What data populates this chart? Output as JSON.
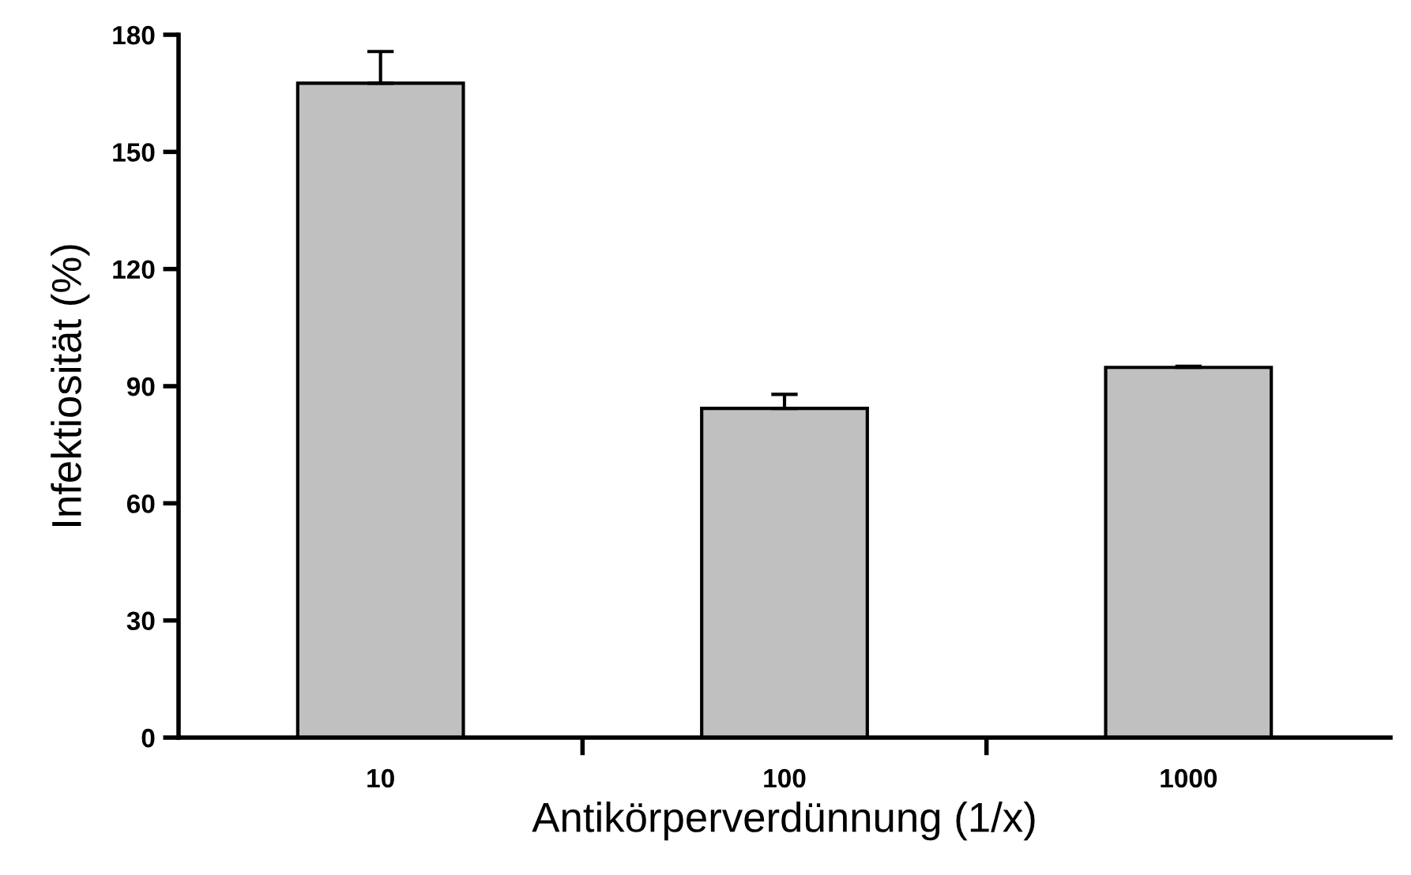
{
  "chart_data": {
    "type": "bar",
    "xlabel": "Antikörperverdünnung (1/x)",
    "ylabel": "Infektiosität (%)",
    "categories": [
      "10",
      "100",
      "1000"
    ],
    "values": [
      167.6,
      84.3,
      94.8
    ],
    "errors": [
      [
        167.6,
        175.7
      ],
      [
        84.3,
        87.9
      ],
      [
        94.8,
        95.1
      ]
    ],
    "color": "#c0c0c0",
    "ylim": [
      0,
      180
    ],
    "yticks": [
      0,
      30,
      60,
      90,
      120,
      150,
      180
    ],
    "grid": false,
    "legend": false
  }
}
